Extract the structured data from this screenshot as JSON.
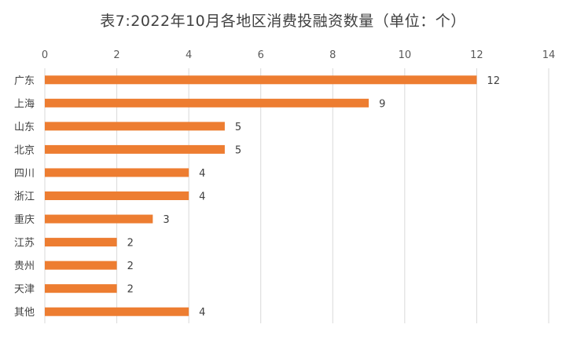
{
  "chart_data": {
    "type": "bar",
    "orientation": "horizontal",
    "title": "表7:2022年10月各地区消费投融资数量（单位：个）",
    "categories": [
      "广东",
      "上海",
      "山东",
      "北京",
      "四川",
      "浙江",
      "重庆",
      "江苏",
      "贵州",
      "天津",
      "其他"
    ],
    "values": [
      12,
      9,
      5,
      5,
      4,
      4,
      3,
      2,
      2,
      2,
      4
    ],
    "xlim": [
      0,
      14
    ],
    "xticks": [
      0,
      2,
      4,
      6,
      8,
      10,
      12,
      14
    ],
    "x_axis_position": "top",
    "grid": true,
    "data_labels": true,
    "bar_color": "#ED7D31",
    "grid_color": "#D9D9D9"
  }
}
